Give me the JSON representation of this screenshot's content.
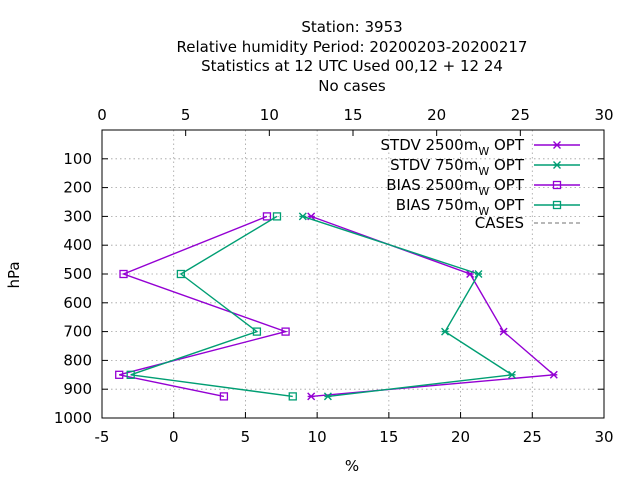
{
  "chart_data": {
    "type": "line",
    "title_lines": [
      "Station:     3953",
      "Relative humidity  Period: 20200203-20200217",
      "Statistics at 12 UTC  Used  00,12  + 12 24",
      "No cases"
    ],
    "xlabel": "%",
    "ylabel": "hPa",
    "xlim": [
      -5,
      30
    ],
    "x2lim": [
      0,
      30
    ],
    "ylim": [
      1000,
      0
    ],
    "x_ticks": [
      -5,
      0,
      5,
      10,
      15,
      20,
      25,
      30
    ],
    "x2_ticks": [
      0,
      5,
      10,
      15,
      20,
      25,
      30
    ],
    "y_ticks": [
      100,
      200,
      300,
      400,
      500,
      600,
      700,
      800,
      900,
      1000
    ],
    "grid": true,
    "legend_position": "top-right",
    "series": [
      {
        "name": "STDV 2500m",
        "name_sub": "W",
        "name_suffix": "OPT",
        "color": "#9400d3",
        "marker": "asterisk",
        "axis": "top",
        "points": [
          [
            12.5,
            300
          ],
          [
            22.0,
            500
          ],
          [
            24.0,
            700
          ],
          [
            27.0,
            850
          ],
          [
            12.5,
            925
          ]
        ]
      },
      {
        "name": "STDV 750m",
        "name_sub": "W",
        "name_suffix": "OPT",
        "color": "#009e73",
        "marker": "asterisk",
        "axis": "top",
        "points": [
          [
            12.0,
            300
          ],
          [
            22.5,
            500
          ],
          [
            20.5,
            700
          ],
          [
            24.5,
            850
          ],
          [
            13.5,
            925
          ]
        ]
      },
      {
        "name": "BIAS 2500m",
        "name_sub": "W",
        "name_suffix": "OPT",
        "color": "#9400d3",
        "marker": "square",
        "axis": "bottom",
        "points": [
          [
            6.5,
            300
          ],
          [
            -3.5,
            500
          ],
          [
            7.8,
            700
          ],
          [
            -3.8,
            850
          ],
          [
            3.5,
            925
          ]
        ]
      },
      {
        "name": "BIAS 750m",
        "name_sub": "W",
        "name_suffix": "OPT",
        "color": "#009e73",
        "marker": "square",
        "axis": "bottom",
        "points": [
          [
            7.2,
            300
          ],
          [
            0.5,
            500
          ],
          [
            5.8,
            700
          ],
          [
            -3.0,
            850
          ],
          [
            8.3,
            925
          ]
        ]
      },
      {
        "name": "CASES",
        "name_sub": "",
        "name_suffix": "",
        "color": "#a0a0a0",
        "marker": "none",
        "dashed": true,
        "points": []
      }
    ]
  }
}
